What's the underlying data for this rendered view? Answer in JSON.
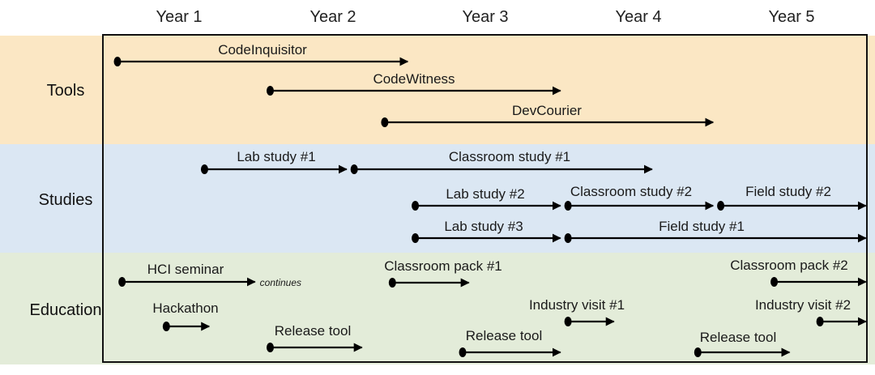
{
  "years": [
    "Year 1",
    "Year 2",
    "Year 3",
    "Year 4",
    "Year 5"
  ],
  "colors": {
    "tools_band": "#fbe7c4",
    "studies_band": "#dbe7f3",
    "education_band": "#e3ecd9",
    "ink": "#000000",
    "label": "#1a1a1a"
  },
  "sections": [
    {
      "name": "Tools",
      "items": [
        {
          "label": "CodeInquisitor",
          "start": 0.0,
          "end": 1.9
        },
        {
          "label": "CodeWitness",
          "start": 1.0,
          "end": 2.9
        },
        {
          "label": "DevCourier",
          "start": 1.75,
          "end": 3.9
        }
      ]
    },
    {
      "name": "Studies",
      "items": [
        {
          "label": "Lab study #1",
          "start": 0.57,
          "end": 1.5
        },
        {
          "label": "Classroom study #1",
          "start": 1.55,
          "end": 3.5
        },
        {
          "label": "Lab study #2",
          "start": 1.95,
          "end": 2.9
        },
        {
          "label": "Classroom study #2",
          "start": 2.95,
          "end": 3.9
        },
        {
          "label": "Field study #2",
          "start": 3.95,
          "end": 4.9
        },
        {
          "label": "Lab study #3",
          "start": 1.95,
          "end": 2.9
        },
        {
          "label": "Field study #1",
          "start": 2.95,
          "end": 4.9
        }
      ]
    },
    {
      "name": "Education",
      "items": [
        {
          "label": "HCI seminar",
          "start": 0.03,
          "end": 0.9,
          "note": "continues"
        },
        {
          "label": "Hackathon",
          "start": 0.32,
          "end": 0.6
        },
        {
          "label": "Release tool",
          "start": 1.0,
          "end": 1.6
        },
        {
          "label": "Classroom pack #1",
          "start": 1.8,
          "end": 2.3
        },
        {
          "label": "Release tool",
          "start": 2.26,
          "end": 2.9
        },
        {
          "label": "Industry visit #1",
          "start": 2.95,
          "end": 3.25
        },
        {
          "label": "Release tool",
          "start": 3.8,
          "end": 4.4
        },
        {
          "label": "Classroom pack #2",
          "start": 4.3,
          "end": 4.9
        },
        {
          "label": "Industry visit #2",
          "start": 4.6,
          "end": 4.9
        }
      ]
    }
  ]
}
